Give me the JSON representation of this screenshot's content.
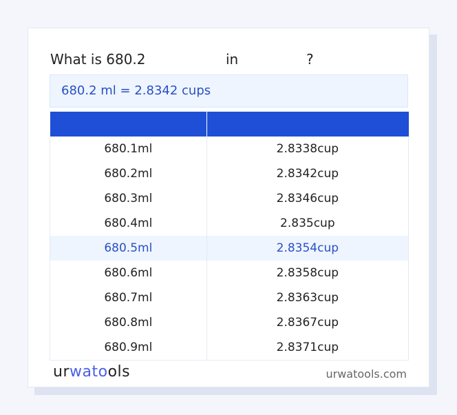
{
  "title": {
    "prefix": "What is 680.2",
    "in": "in",
    "q": "?"
  },
  "result": "680.2 ml = 2.8342 cups",
  "table": {
    "headers": [
      "",
      ""
    ],
    "rows": [
      [
        "680.1ml",
        "2.8338cup"
      ],
      [
        "680.2ml",
        "2.8342cup"
      ],
      [
        "680.3ml",
        "2.8346cup"
      ],
      [
        "680.4ml",
        "2.835cup"
      ],
      [
        "680.5ml",
        "2.8354cup"
      ],
      [
        "680.6ml",
        "2.8358cup"
      ],
      [
        "680.7ml",
        "2.8363cup"
      ],
      [
        "680.8ml",
        "2.8367cup"
      ],
      [
        "680.9ml",
        "2.8371cup"
      ]
    ],
    "highlighted_row": 4
  },
  "footer": {
    "logo": {
      "a": "ur",
      "b": "wato",
      "c": "ols"
    },
    "site": "urwatools.com"
  },
  "colors": {
    "accent": "#1e4fd6",
    "highlight_bg": "#eef5ff",
    "highlight_text": "#2a4fc4"
  }
}
